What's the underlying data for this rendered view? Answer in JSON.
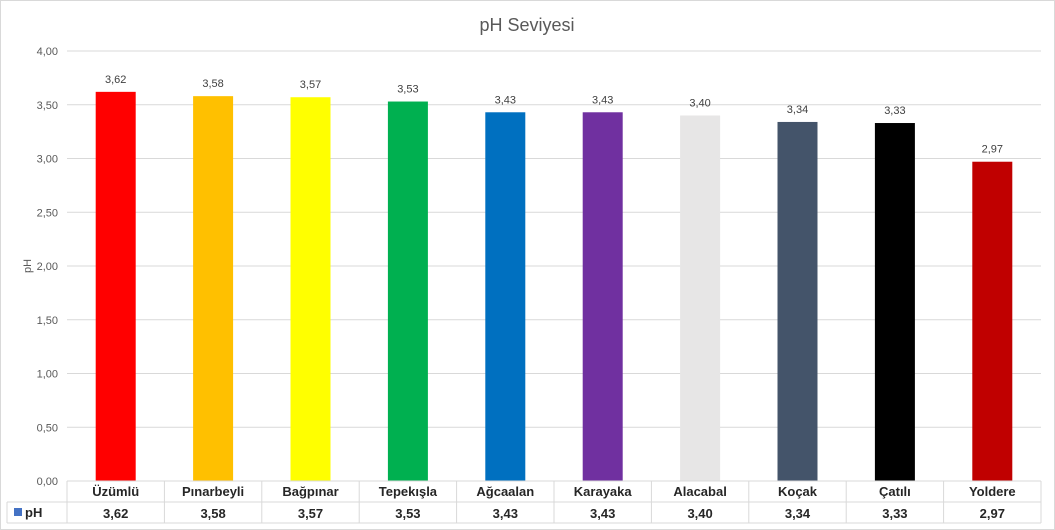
{
  "chart_data": {
    "type": "bar",
    "title": "pH Seviyesi",
    "ylabel": "pH",
    "xlabel": "",
    "ylim": [
      0,
      4
    ],
    "ytick_step": 0.5,
    "yticks": [
      "0,00",
      "0,50",
      "1,00",
      "1,50",
      "2,00",
      "2,50",
      "3,00",
      "3,50",
      "4,00"
    ],
    "grid": true,
    "legend": "data-table",
    "categories": [
      "Üzümlü",
      "Pınarbeyli",
      "Bağpınar",
      "Tepekışla",
      "Ağcaalan",
      "Karayaka",
      "Alacabal",
      "Koçak",
      "Çatılı",
      "Yoldere"
    ],
    "series": [
      {
        "name": "pH",
        "values": [
          3.62,
          3.58,
          3.57,
          3.53,
          3.43,
          3.43,
          3.4,
          3.34,
          3.33,
          2.97
        ],
        "labels": [
          "3,62",
          "3,58",
          "3,57",
          "3,53",
          "3,43",
          "3,43",
          "3,40",
          "3,34",
          "3,33",
          "2,97"
        ],
        "legend_color": "#4472c4"
      }
    ],
    "bar_colors": [
      "#ff0000",
      "#ffc000",
      "#ffff00",
      "#00b050",
      "#0070c0",
      "#7030a0",
      "#e7e6e6",
      "#44546a",
      "#000000",
      "#c00000"
    ]
  }
}
